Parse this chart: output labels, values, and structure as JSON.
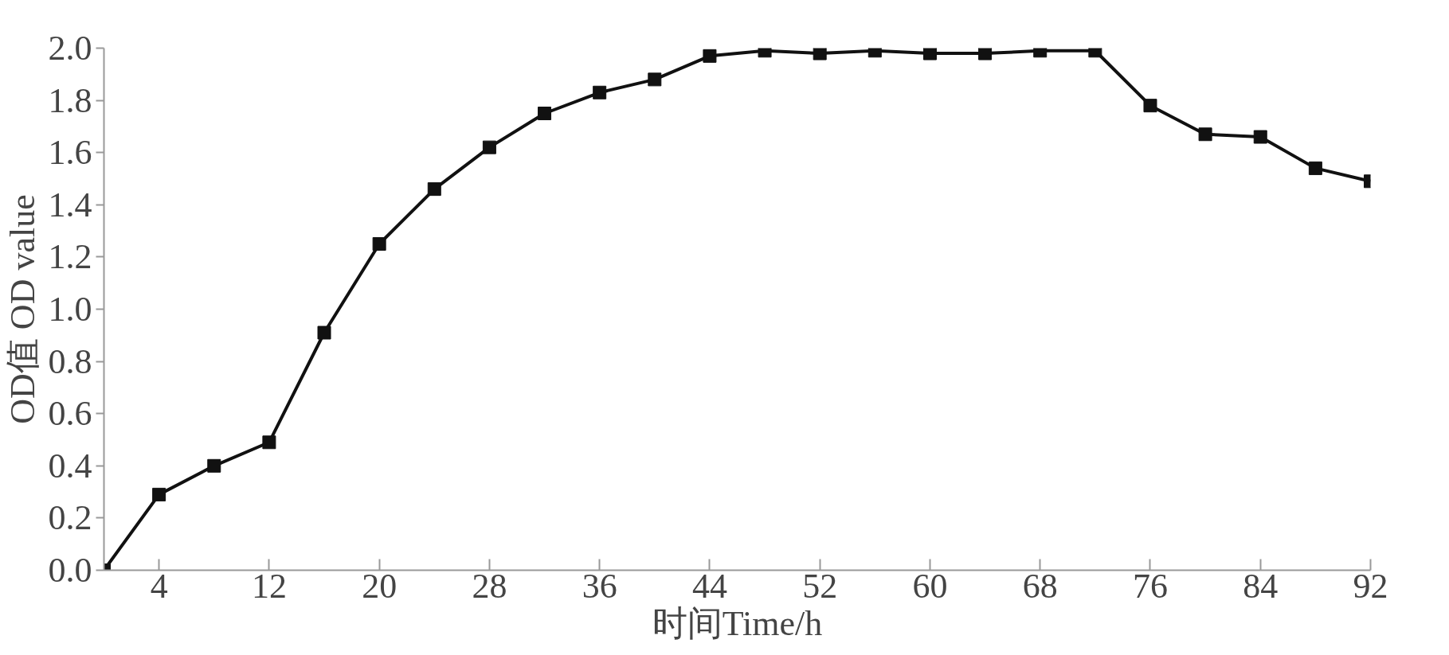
{
  "chart_data": {
    "type": "line",
    "xlabel": "时间Time/h",
    "ylabel": "OD值 OD value",
    "x": [
      0,
      4,
      8,
      12,
      16,
      20,
      24,
      28,
      32,
      36,
      40,
      44,
      48,
      52,
      56,
      60,
      64,
      68,
      72,
      76,
      80,
      84,
      88,
      92
    ],
    "series": [
      {
        "color": "#111111",
        "values": [
          0,
          0.29,
          0.4,
          0.49,
          0.91,
          1.25,
          1.46,
          1.62,
          1.75,
          1.83,
          1.88,
          1.97,
          1.99,
          1.98,
          1.99,
          1.98,
          1.98,
          1.99,
          1.99,
          1.78,
          1.67,
          1.66,
          1.54,
          1.49
        ]
      }
    ],
    "xlim": [
      0,
      92
    ],
    "xticks": [
      4,
      12,
      20,
      28,
      36,
      44,
      52,
      60,
      68,
      76,
      84,
      92
    ],
    "ylim": [
      0,
      2.0
    ],
    "yticks": [
      {
        "value": 0,
        "label": "0.0"
      },
      {
        "value": 0.2,
        "label": "0.2"
      },
      {
        "value": 0.4,
        "label": "0.4"
      },
      {
        "value": 0.6,
        "label": "0.6"
      },
      {
        "value": 0.8,
        "label": "0.8"
      },
      {
        "value": 1.0,
        "label": "1.0"
      },
      {
        "value": 1.2,
        "label": "1.2"
      },
      {
        "value": 1.4,
        "label": "1.4"
      },
      {
        "value": 1.6,
        "label": "1.6"
      },
      {
        "value": 1.8,
        "label": "1.8"
      },
      {
        "value": 2.0,
        "label": "2.0"
      }
    ],
    "grid": false,
    "marker": "square",
    "line_style": "solid"
  }
}
